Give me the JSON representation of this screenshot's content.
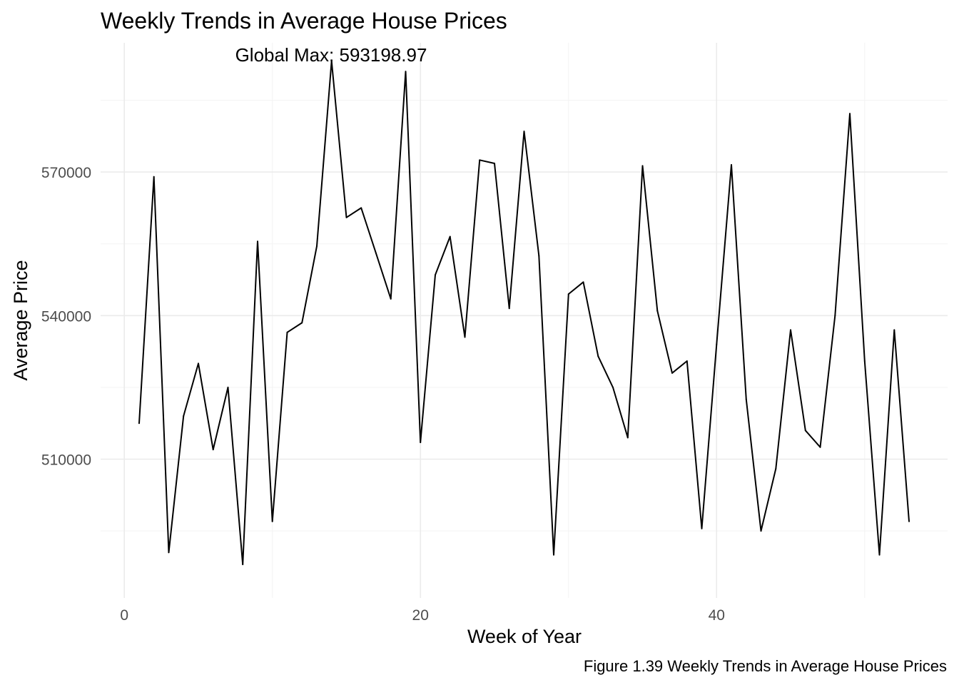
{
  "chart_data": {
    "type": "line",
    "title": "Weekly Trends in Average House Prices",
    "xlabel": "Week of Year",
    "ylabel": "Average Price",
    "caption": "Figure 1.39 Weekly Trends in Average House Prices",
    "annotation": "Global Max: 593198.97",
    "xlim": [
      -1.6,
      55.6
    ],
    "ylim": [
      481000,
      597000
    ],
    "x_ticks": [
      0,
      20,
      40
    ],
    "x_tick_labels": [
      "0",
      "20",
      "40"
    ],
    "x_minor_ticks": [
      10,
      30,
      50
    ],
    "y_ticks": [
      510000,
      540000,
      570000
    ],
    "y_tick_labels": [
      "510000",
      "540000",
      "570000"
    ],
    "y_minor_ticks": [
      495000,
      525000,
      555000,
      585000
    ],
    "grid": true,
    "legend": "none",
    "series": [
      {
        "color": "#000000",
        "x": [
          1,
          2,
          3,
          4,
          5,
          6,
          7,
          8,
          9,
          10,
          11,
          12,
          13,
          14,
          15,
          16,
          17,
          18,
          19,
          20,
          21,
          22,
          23,
          24,
          25,
          26,
          27,
          28,
          29,
          30,
          31,
          32,
          33,
          34,
          35,
          36,
          37,
          38,
          39,
          40,
          41,
          42,
          43,
          44,
          45,
          46,
          47,
          48,
          49,
          50,
          51,
          52,
          53
        ],
        "values": [
          517500,
          569000,
          490500,
          519000,
          530000,
          512000,
          525000,
          488000,
          555500,
          497000,
          536500,
          538500,
          554500,
          593199,
          560500,
          562500,
          553000,
          543500,
          591000,
          513500,
          548500,
          556500,
          535500,
          572500,
          571800,
          541500,
          578500,
          552500,
          490000,
          544500,
          547000,
          531500,
          525000,
          514500,
          571300,
          541000,
          528000,
          530500,
          495500,
          534000,
          571500,
          522500,
          495000,
          508000,
          537000,
          516000,
          512500,
          540000,
          582200,
          530500,
          490000,
          537000,
          497000
        ]
      }
    ]
  }
}
